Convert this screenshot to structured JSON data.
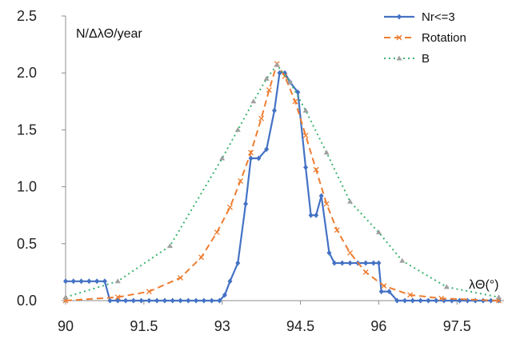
{
  "chart_data": {
    "type": "line",
    "title": "",
    "ylabel": "N/ΔλΘ/year",
    "xlabel": "λΘ(°)",
    "xlim": [
      90,
      98.4
    ],
    "ylim": [
      0,
      2.5
    ],
    "xticks": [
      "90",
      "91.5",
      "93",
      "94.5",
      "96",
      "97.5"
    ],
    "yticks": [
      "0.0",
      "0.5",
      "1.0",
      "1.5",
      "2.0",
      "2.5"
    ],
    "grid": false,
    "legend": "top-right",
    "series": [
      {
        "name": "Nr<=3",
        "color": "#4472c4",
        "style": "solid",
        "marker": "diamond",
        "points": [
          [
            90.0,
            0.17
          ],
          [
            90.15,
            0.17
          ],
          [
            90.3,
            0.17
          ],
          [
            90.45,
            0.17
          ],
          [
            90.6,
            0.17
          ],
          [
            90.75,
            0.17
          ],
          [
            90.85,
            0.0
          ],
          [
            91.0,
            0.0
          ],
          [
            91.15,
            0.0
          ],
          [
            91.3,
            0.0
          ],
          [
            91.45,
            0.0
          ],
          [
            91.6,
            0.0
          ],
          [
            91.75,
            0.0
          ],
          [
            91.9,
            0.0
          ],
          [
            92.05,
            0.0
          ],
          [
            92.2,
            0.0
          ],
          [
            92.35,
            0.0
          ],
          [
            92.5,
            0.0
          ],
          [
            92.65,
            0.0
          ],
          [
            92.8,
            0.0
          ],
          [
            92.95,
            0.0
          ],
          [
            93.05,
            0.05
          ],
          [
            93.15,
            0.17
          ],
          [
            93.3,
            0.33
          ],
          [
            93.45,
            0.85
          ],
          [
            93.55,
            1.25
          ],
          [
            93.7,
            1.25
          ],
          [
            93.85,
            1.33
          ],
          [
            94.0,
            1.67
          ],
          [
            94.1,
            2.0
          ],
          [
            94.2,
            2.0
          ],
          [
            94.3,
            1.92
          ],
          [
            94.45,
            1.83
          ],
          [
            94.6,
            1.17
          ],
          [
            94.7,
            0.75
          ],
          [
            94.8,
            0.75
          ],
          [
            94.9,
            0.92
          ],
          [
            95.05,
            0.42
          ],
          [
            95.15,
            0.33
          ],
          [
            95.3,
            0.33
          ],
          [
            95.45,
            0.33
          ],
          [
            95.6,
            0.33
          ],
          [
            95.75,
            0.33
          ],
          [
            95.9,
            0.33
          ],
          [
            96.0,
            0.33
          ],
          [
            96.05,
            0.08
          ],
          [
            96.2,
            0.08
          ],
          [
            96.35,
            0.0
          ],
          [
            96.5,
            0.0
          ],
          [
            96.65,
            0.0
          ],
          [
            96.8,
            0.0
          ],
          [
            96.95,
            0.0
          ],
          [
            97.1,
            0.0
          ],
          [
            97.25,
            0.0
          ],
          [
            97.4,
            0.0
          ],
          [
            97.55,
            0.0
          ],
          [
            97.7,
            0.0
          ],
          [
            97.85,
            0.0
          ],
          [
            98.0,
            0.0
          ],
          [
            98.15,
            0.0
          ],
          [
            98.3,
            0.0
          ]
        ]
      },
      {
        "name": "Rotation",
        "color": "#ed7d31",
        "style": "dashed",
        "marker": "x",
        "points": [
          [
            90.0,
            0.0
          ],
          [
            91.0,
            0.03
          ],
          [
            91.6,
            0.08
          ],
          [
            92.2,
            0.2
          ],
          [
            92.6,
            0.38
          ],
          [
            92.9,
            0.6
          ],
          [
            93.15,
            0.82
          ],
          [
            93.35,
            1.05
          ],
          [
            93.55,
            1.3
          ],
          [
            93.75,
            1.6
          ],
          [
            93.9,
            1.85
          ],
          [
            94.05,
            2.08
          ],
          [
            94.2,
            1.97
          ],
          [
            94.4,
            1.75
          ],
          [
            94.6,
            1.45
          ],
          [
            94.8,
            1.15
          ],
          [
            95.0,
            0.85
          ],
          [
            95.2,
            0.62
          ],
          [
            95.45,
            0.42
          ],
          [
            95.75,
            0.25
          ],
          [
            96.1,
            0.13
          ],
          [
            96.6,
            0.05
          ],
          [
            97.2,
            0.02
          ],
          [
            98.3,
            0.0
          ]
        ]
      },
      {
        "name": "B",
        "color": "#3cb371",
        "style": "dotted",
        "marker": "triangle",
        "points": [
          [
            90.0,
            0.03
          ],
          [
            91.0,
            0.17
          ],
          [
            92.0,
            0.48
          ],
          [
            93.0,
            1.25
          ],
          [
            93.3,
            1.5
          ],
          [
            93.6,
            1.75
          ],
          [
            93.85,
            1.95
          ],
          [
            94.05,
            2.07
          ],
          [
            94.3,
            1.92
          ],
          [
            94.6,
            1.67
          ],
          [
            95.0,
            1.3
          ],
          [
            95.45,
            0.87
          ],
          [
            96.0,
            0.6
          ],
          [
            96.45,
            0.35
          ],
          [
            97.3,
            0.12
          ],
          [
            98.3,
            0.03
          ]
        ]
      }
    ]
  }
}
